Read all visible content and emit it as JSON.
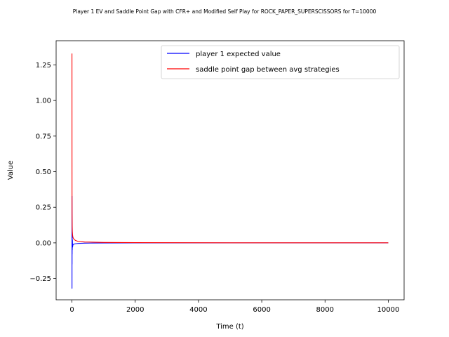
{
  "chart_data": {
    "type": "line",
    "title": "Player 1 EV and Saddle Point Gap with CFR+ and Modified Self Play for ROCK_PAPER_SUPERSCISSORS for T=10000",
    "xlabel": "Time (t)",
    "ylabel": "Value",
    "xlim": [
      -500,
      10500
    ],
    "ylim": [
      -0.4,
      1.42
    ],
    "xticks": [
      0,
      2000,
      4000,
      6000,
      8000,
      10000
    ],
    "xtick_labels": [
      "0",
      "2000",
      "4000",
      "6000",
      "8000",
      "10000"
    ],
    "yticks": [
      -0.25,
      0.0,
      0.25,
      0.5,
      0.75,
      1.0,
      1.25
    ],
    "ytick_labels": [
      "−0.25",
      "0.00",
      "0.25",
      "0.50",
      "0.75",
      "1.00",
      "1.25"
    ],
    "grid": false,
    "legend_position": "top-right",
    "series": [
      {
        "name": "player 1 expected value",
        "color": "#0000ff",
        "x": [
          1,
          2,
          3,
          4,
          5,
          6,
          8,
          10,
          15,
          20,
          30,
          50,
          80,
          120,
          200,
          400,
          1000,
          2000,
          5000,
          10000
        ],
        "y": [
          0.33,
          -0.32,
          0.12,
          -0.15,
          0.08,
          -0.08,
          0.05,
          -0.05,
          0.02,
          -0.03,
          -0.015,
          -0.01,
          -0.008,
          -0.006,
          -0.004,
          -0.002,
          -0.001,
          -0.0005,
          -0.0002,
          0.0
        ]
      },
      {
        "name": "saddle point gap between avg strategies",
        "color": "#ff0000",
        "x": [
          1,
          2,
          3,
          5,
          8,
          12,
          20,
          30,
          50,
          80,
          120,
          200,
          400,
          1000,
          2000,
          5000,
          10000
        ],
        "y": [
          1.33,
          0.6,
          0.35,
          0.2,
          0.12,
          0.08,
          0.055,
          0.04,
          0.03,
          0.022,
          0.016,
          0.01,
          0.006,
          0.003,
          0.0015,
          0.0006,
          0.0002
        ]
      }
    ]
  }
}
